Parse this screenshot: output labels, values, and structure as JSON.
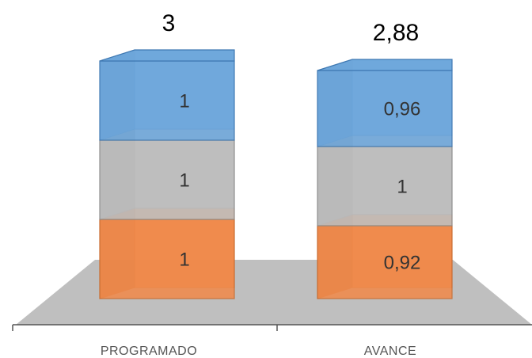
{
  "chart_data": {
    "type": "bar",
    "stacked": true,
    "style": "3d",
    "categories": [
      "PROGRAMADO",
      "AVANCE"
    ],
    "series": [
      {
        "values": [
          1,
          0.92
        ],
        "labels": [
          "1",
          "0,92"
        ],
        "color": "#F08A4B",
        "dark": "#C86A2E"
      },
      {
        "values": [
          1,
          1
        ],
        "labels": [
          "1",
          "1"
        ],
        "color": "#BEBEBE",
        "dark": "#8C8C8C"
      },
      {
        "values": [
          1,
          0.96
        ],
        "labels": [
          "1",
          "0,96"
        ],
        "color": "#6FA8DC",
        "dark": "#3E78B2"
      }
    ],
    "totals": [
      3,
      2.88
    ],
    "total_labels": [
      "3",
      "2,88"
    ],
    "floor_color": "#BFBFBF",
    "legend": "none",
    "grid": false
  }
}
